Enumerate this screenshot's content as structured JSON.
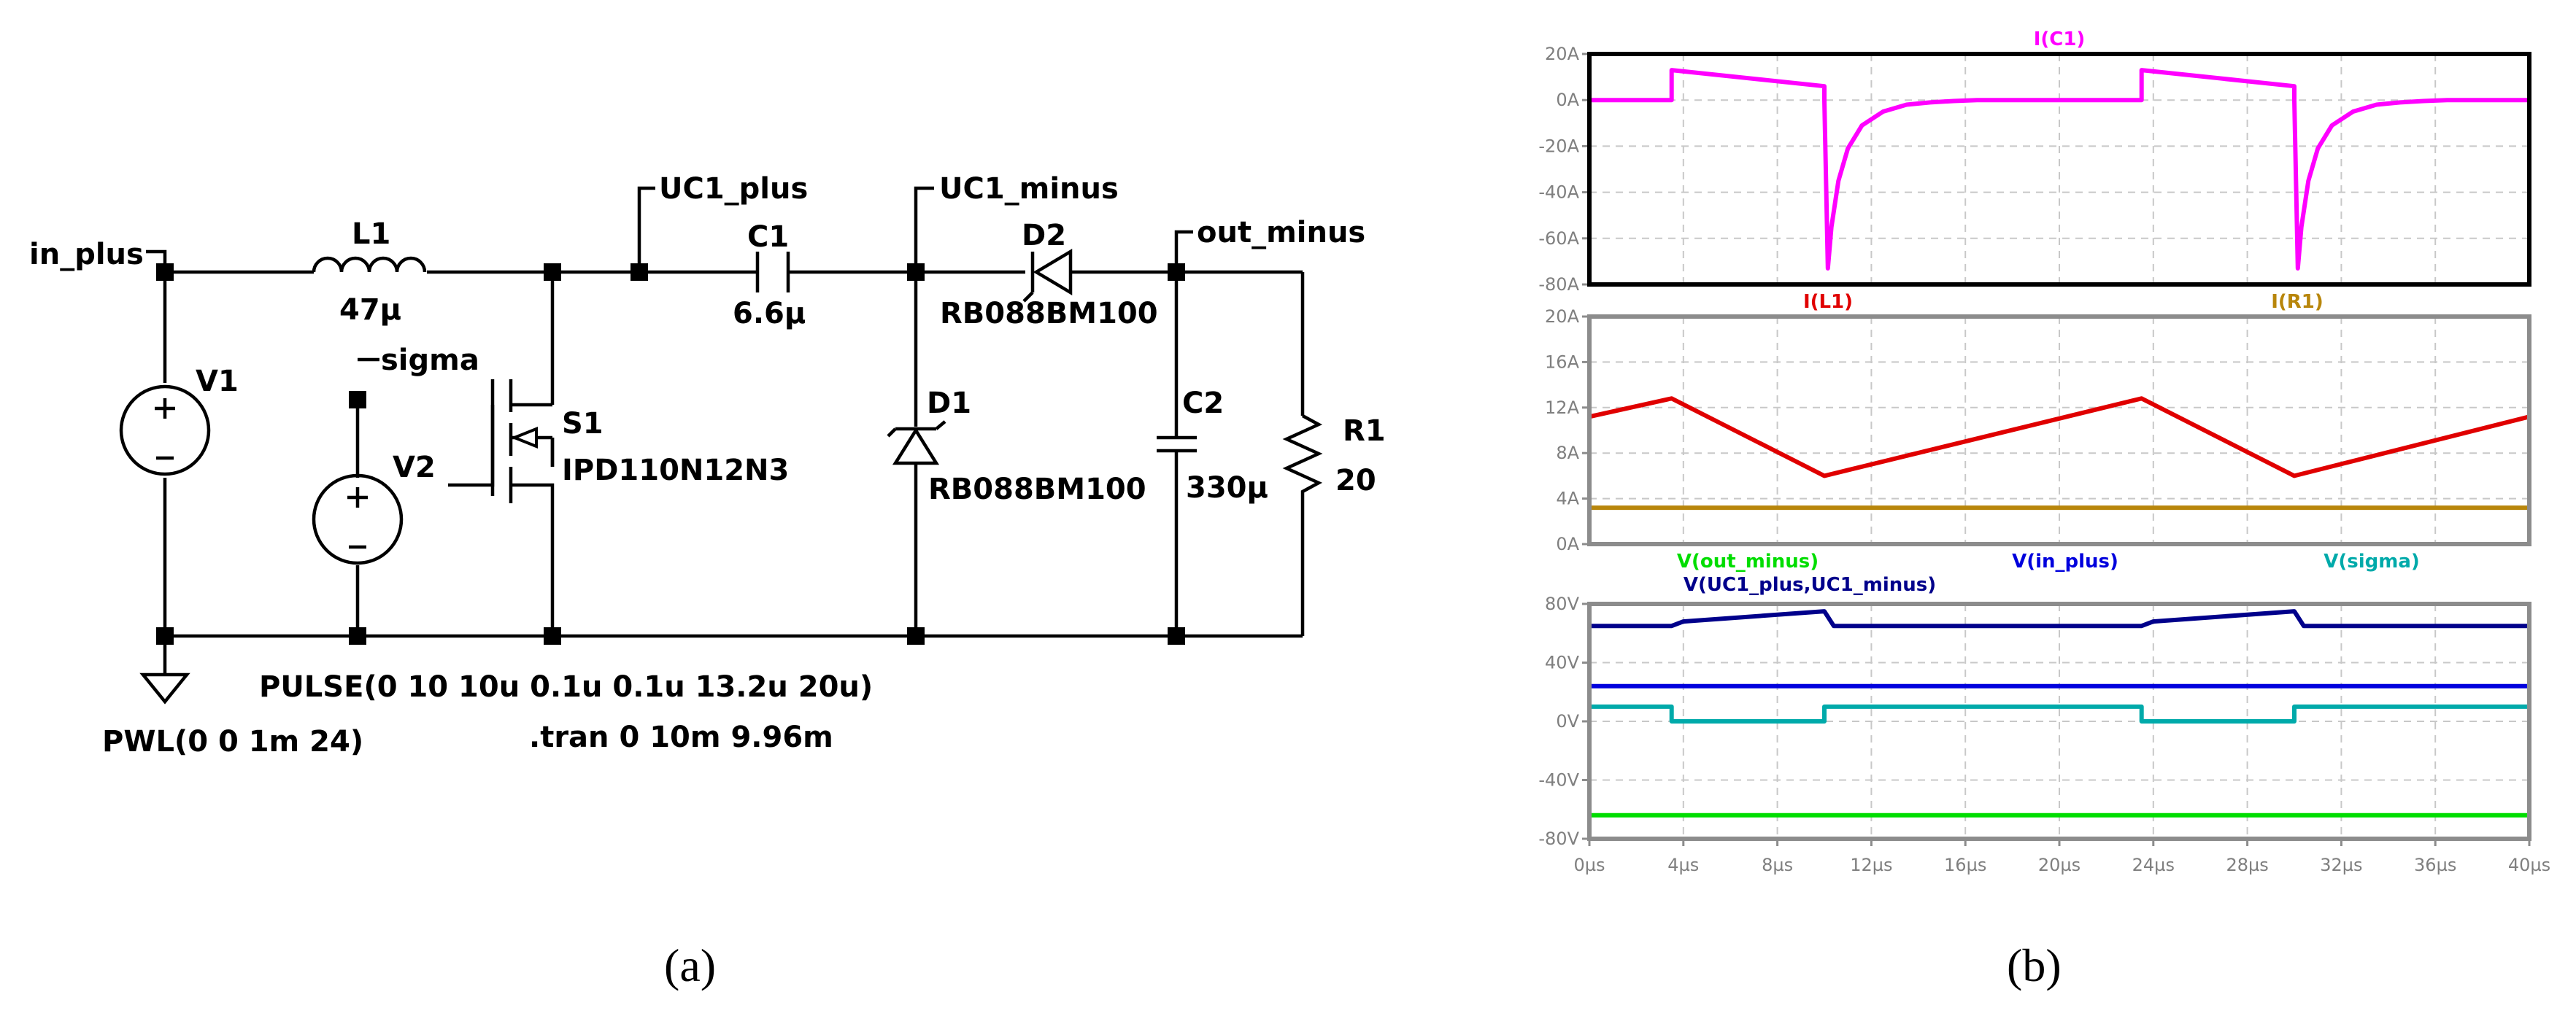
{
  "schematic": {
    "nets": {
      "in_plus": "in_plus",
      "uc1_plus": "UC1_plus",
      "uc1_minus": "UC1_minus",
      "out_minus": "out_minus",
      "sigma": "sigma"
    },
    "components": {
      "L1": {
        "name": "L1",
        "value": "47µ"
      },
      "C1": {
        "name": "C1",
        "value": "6.6µ"
      },
      "D2": {
        "name": "D2",
        "value": "RB088BM100"
      },
      "D1": {
        "name": "D1",
        "value": "RB088BM100"
      },
      "C2": {
        "name": "C2",
        "value": "330µ"
      },
      "R1": {
        "name": "R1",
        "value": "20"
      },
      "V1": {
        "name": "V1"
      },
      "V2": {
        "name": "V2"
      },
      "S1": {
        "name": "S1",
        "value": "IPD110N12N3"
      }
    },
    "directives": {
      "pulse": "PULSE(0 10 10u 0.1u 0.1u 13.2u 20u)",
      "pwl": "PWL(0 0 1m 24)",
      "tran": ".tran 0 10m 9.96m"
    }
  },
  "captions": {
    "a": "(a)",
    "b": "(b)"
  },
  "colors": {
    "I(C1)": "#ff00ff",
    "I(L1)": "#e00000",
    "I(R1)": "#b8860b",
    "V(out_minus)": "#00dd00",
    "V(in_plus)": "#0000dd",
    "V(sigma)": "#00aaaa",
    "V(UC1_plus,UC1_minus)": "#00008b"
  },
  "chart_data": [
    {
      "type": "line",
      "x_unit": "µs",
      "xlim": [
        0,
        40
      ],
      "ylim": [
        -80,
        20
      ],
      "yticks": [
        "20A",
        "0A",
        "-20A",
        "-40A",
        "-60A",
        "-80A"
      ],
      "ytick_values": [
        20,
        0,
        -20,
        -40,
        -60,
        -80
      ],
      "series": [
        {
          "name": "I(C1)",
          "color": "#ff00ff",
          "x": [
            0,
            3.5,
            3.5,
            10.0,
            10.0,
            10.15,
            10.3,
            10.6,
            11.0,
            11.6,
            12.5,
            13.5,
            14.5,
            15.5,
            16.5,
            23.5,
            23.5,
            30.0,
            30.0,
            30.15,
            30.3,
            30.6,
            31.0,
            31.6,
            32.5,
            33.5,
            34.5,
            35.5,
            36.5,
            40
          ],
          "y": [
            0,
            0,
            13,
            6,
            0,
            -73,
            -55,
            -35,
            -21,
            -11,
            -5,
            -2,
            -1,
            -0.4,
            0,
            0,
            13,
            6,
            0,
            -73,
            -55,
            -35,
            -21,
            -11,
            -5,
            -2,
            -1,
            -0.4,
            0,
            0
          ]
        }
      ]
    },
    {
      "type": "line",
      "x_unit": "µs",
      "xlim": [
        0,
        40
      ],
      "ylim": [
        0,
        20
      ],
      "yticks": [
        "20A",
        "16A",
        "12A",
        "8A",
        "4A",
        "0A"
      ],
      "ytick_values": [
        20,
        16,
        12,
        8,
        4,
        0
      ],
      "series": [
        {
          "name": "I(L1)",
          "color": "#e00000",
          "x": [
            0,
            3.5,
            10.0,
            23.5,
            30.0,
            40
          ],
          "y": [
            11.2,
            12.8,
            6.0,
            12.8,
            6.0,
            11.2
          ]
        },
        {
          "name": "I(R1)",
          "color": "#b8860b",
          "x": [
            0,
            10,
            20,
            30,
            40
          ],
          "y": [
            3.2,
            3.2,
            3.2,
            3.2,
            3.2
          ]
        }
      ]
    },
    {
      "type": "line",
      "x_unit": "µs",
      "xlim": [
        0,
        40
      ],
      "ylim": [
        -80,
        80
      ],
      "xticks": [
        "0µs",
        "4µs",
        "8µs",
        "12µs",
        "16µs",
        "20µs",
        "24µs",
        "28µs",
        "32µs",
        "36µs",
        "40µs"
      ],
      "xtick_values": [
        0,
        4,
        8,
        12,
        16,
        20,
        24,
        28,
        32,
        36,
        40
      ],
      "yticks": [
        "80V",
        "40V",
        "0V",
        "-40V",
        "-80V"
      ],
      "ytick_values": [
        80,
        40,
        0,
        -40,
        -80
      ],
      "series": [
        {
          "name": "V(out_minus)",
          "color": "#00dd00",
          "x": [
            0,
            40
          ],
          "y": [
            -64,
            -64
          ]
        },
        {
          "name": "V(in_plus)",
          "color": "#0000dd",
          "x": [
            0,
            40
          ],
          "y": [
            24,
            24
          ]
        },
        {
          "name": "V(sigma)",
          "color": "#00aaaa",
          "x": [
            0,
            3.5,
            3.5,
            10.0,
            10.0,
            23.5,
            23.5,
            30.0,
            30.0,
            40
          ],
          "y": [
            10,
            10,
            0,
            0,
            10,
            10,
            0,
            0,
            10,
            10
          ]
        },
        {
          "name": "V(UC1_plus,UC1_minus)",
          "color": "#00008b",
          "x": [
            0,
            3.5,
            4.0,
            10.0,
            10.4,
            23.5,
            24.0,
            30.0,
            30.4,
            40
          ],
          "y": [
            65,
            65,
            68,
            75,
            65,
            65,
            68,
            75,
            65,
            65
          ]
        }
      ]
    }
  ]
}
